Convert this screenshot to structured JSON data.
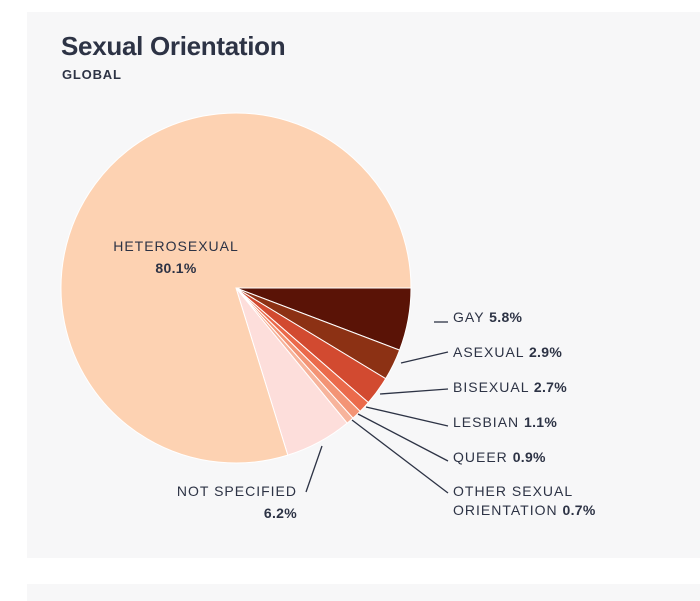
{
  "header": {
    "title": "Sexual Orientation",
    "subtitle": "GLOBAL"
  },
  "colors": {
    "background": "#f7f7f8",
    "text": "#2d3345",
    "leader": "#2d3345"
  },
  "chart_data": {
    "type": "pie",
    "title": "Sexual Orientation",
    "subtitle": "GLOBAL",
    "slices": [
      {
        "label": "GAY",
        "value": 5.8,
        "value_label": "5.8%",
        "color": "#5a1306"
      },
      {
        "label": "ASEXUAL",
        "value": 2.9,
        "value_label": "2.9%",
        "color": "#8c3114"
      },
      {
        "label": "BISEXUAL",
        "value": 2.7,
        "value_label": "2.7%",
        "color": "#d24a30"
      },
      {
        "label": "LESBIAN",
        "value": 1.1,
        "value_label": "1.1%",
        "color": "#eb6a4b"
      },
      {
        "label": "QUEER",
        "value": 0.9,
        "value_label": "0.9%",
        "color": "#f39475"
      },
      {
        "label": "OTHER SEXUAL ORIENTATION",
        "value": 0.7,
        "value_label": "0.7%",
        "color": "#f7b49c"
      },
      {
        "label": "NOT SPECIFIED",
        "value": 6.2,
        "value_label": "6.2%",
        "color": "#fddedb"
      },
      {
        "label": "HETEROSEXUAL",
        "value": 80.1,
        "value_label": "80.1%",
        "color": "#fdd2b2"
      }
    ]
  }
}
